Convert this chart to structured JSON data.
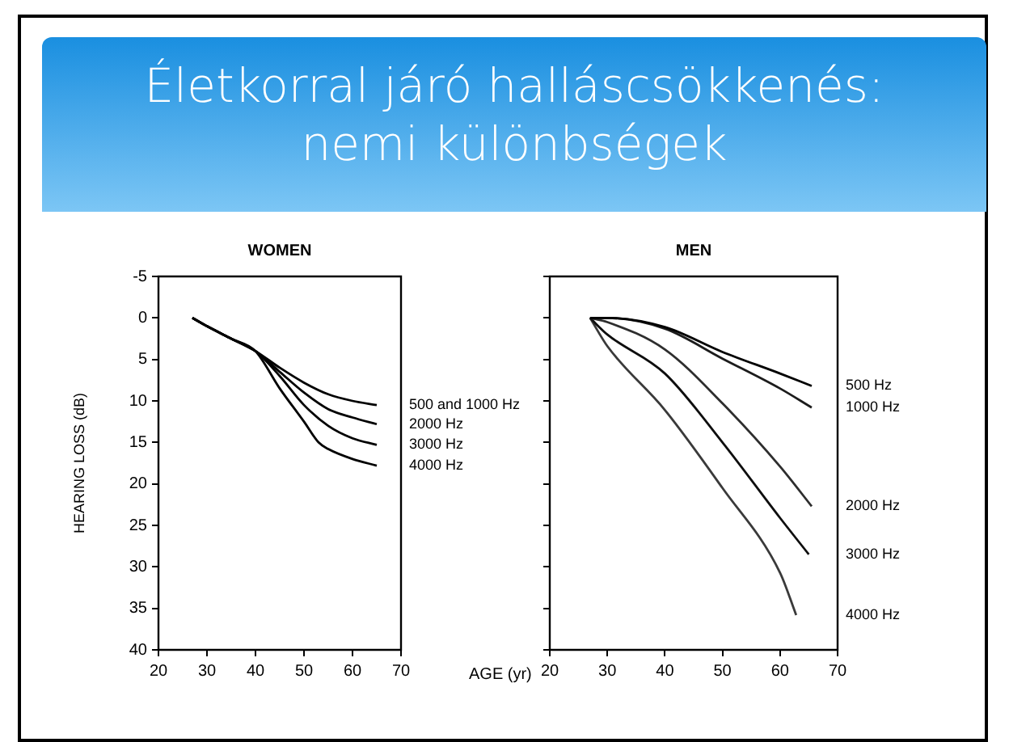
{
  "chart_data": [
    {
      "type": "line",
      "title": "Életkorral járó halláscsökkenés: nemi különbségek",
      "subtitle": "WOMEN",
      "xlabel": "AGE (yr)",
      "ylabel": "HEARING LOSS (dB)",
      "xlim": [
        20,
        70
      ],
      "xticks": [
        20,
        30,
        40,
        50,
        60,
        70
      ],
      "ylim": [
        40,
        -5
      ],
      "yticks": [
        -5,
        0,
        5,
        10,
        15,
        20,
        25,
        30,
        35,
        40
      ],
      "grid": false,
      "legend": false,
      "marker": "none",
      "line_style": "solid",
      "series": [
        {
          "name": "500 and 1000 Hz",
          "color": "#000000",
          "x": [
            27,
            30,
            35,
            40,
            45,
            50,
            55,
            60,
            65
          ],
          "values": [
            0,
            1,
            2.5,
            4,
            6,
            7.8,
            9.2,
            10,
            10.5
          ]
        },
        {
          "name": "2000 Hz",
          "color": "#000000",
          "x": [
            27,
            30,
            35,
            40,
            45,
            50,
            55,
            60,
            65
          ],
          "values": [
            0,
            1,
            2.5,
            4,
            6.5,
            9,
            11,
            12,
            12.8
          ]
        },
        {
          "name": "3000 Hz",
          "color": "#000000",
          "x": [
            27,
            30,
            35,
            40,
            45,
            50,
            55,
            60,
            65
          ],
          "values": [
            0,
            1,
            2.5,
            4,
            7,
            10.5,
            13,
            14.5,
            15.3
          ]
        },
        {
          "name": "4000 Hz",
          "color": "#000000",
          "x": [
            27,
            30,
            35,
            40,
            45,
            50,
            53,
            55,
            60,
            65
          ],
          "values": [
            0,
            1,
            2.5,
            4,
            8.5,
            12.5,
            15,
            15.8,
            17,
            17.8
          ]
        }
      ]
    },
    {
      "type": "line",
      "subtitle": "MEN",
      "xlim": [
        20,
        70
      ],
      "xticks": [
        20,
        30,
        40,
        50,
        60,
        70
      ],
      "ylim": [
        40,
        -5
      ],
      "yticks": [
        -5,
        0,
        5,
        10,
        15,
        20,
        25,
        30,
        35,
        40
      ],
      "tick_labels": "x",
      "grid": false,
      "legend": false,
      "marker": "none",
      "line_style": "solid",
      "series": [
        {
          "name": "500 Hz",
          "color": "#000000",
          "x": [
            27,
            30,
            40,
            50,
            60,
            65.5
          ],
          "values": [
            0,
            0,
            1.1,
            4.1,
            6.7,
            8.2
          ]
        },
        {
          "name": "1000 Hz",
          "color": "#1c1c1c",
          "x": [
            27,
            30,
            40,
            50,
            60,
            65.5
          ],
          "values": [
            0,
            0,
            1.3,
            4.9,
            8.5,
            10.8
          ]
        },
        {
          "name": "2000 Hz",
          "color": "#2e2e2e",
          "x": [
            27,
            30,
            40,
            50,
            60,
            65.5
          ],
          "values": [
            0,
            0.5,
            3.8,
            10.3,
            17.9,
            22.7
          ]
        },
        {
          "name": "3000 Hz",
          "color": "#0e0e0e",
          "x": [
            27,
            30,
            40,
            50,
            60,
            65
          ],
          "values": [
            0,
            2,
            6.7,
            15,
            24.1,
            28.5
          ]
        },
        {
          "name": "4000 Hz",
          "color": "#3a3a3a",
          "x": [
            27,
            30,
            40,
            50,
            60,
            62.8
          ],
          "values": [
            0,
            3.4,
            11.1,
            20.5,
            30.7,
            35.8
          ]
        }
      ]
    }
  ]
}
